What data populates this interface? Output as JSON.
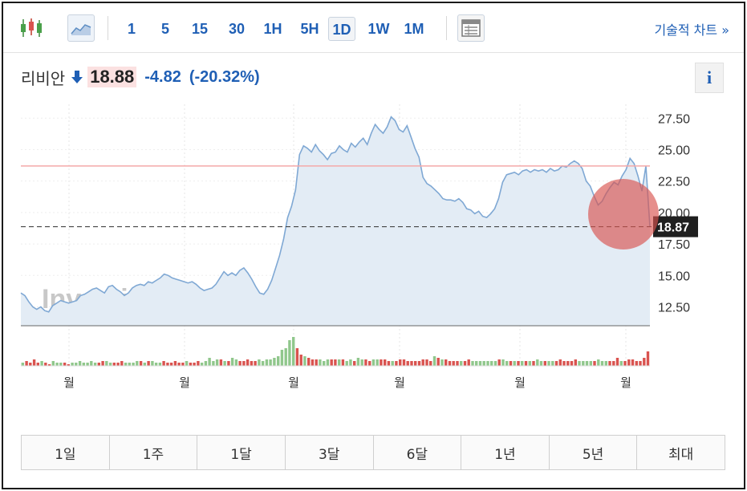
{
  "toolbar": {
    "periods": [
      "1",
      "5",
      "15",
      "30",
      "1H",
      "5H",
      "1D",
      "1W",
      "1M"
    ],
    "active_period": "1D",
    "tech_chart_label": "기술적 차트 »"
  },
  "quote": {
    "name": "리비안",
    "price": "18.88",
    "change": "-4.82",
    "change_pct": "(-20.32%)",
    "direction": "down",
    "down_color": "#1f5fb5",
    "info_label": "i"
  },
  "chart_data": {
    "type": "area",
    "x_tick_labels": [
      "월",
      "월",
      "월",
      "월",
      "월",
      "월"
    ],
    "y_tick_labels": [
      "27.50",
      "25.00",
      "22.50",
      "20.00",
      "17.50",
      "15.00",
      "12.50"
    ],
    "ylim": [
      11.0,
      28.6
    ],
    "ref_line_value": 23.7,
    "current_value": 18.87,
    "current_label": "18.87",
    "line_color": "#7fa8d4",
    "fill_color": "#e3ecf5",
    "watermark": "Investing.com",
    "series": [
      {
        "values": [
          13.6,
          13.4,
          12.9,
          12.5,
          12.3,
          12.5,
          12.2,
          12.1,
          12.6,
          12.8,
          13.0,
          12.9,
          12.8,
          12.9,
          13.0,
          13.4,
          13.5,
          13.7,
          13.9,
          14.0,
          13.8,
          13.6,
          14.1,
          14.2,
          13.9,
          13.7,
          13.4,
          13.6,
          14.0,
          14.2,
          14.3,
          14.2,
          14.5,
          14.4,
          14.6,
          14.8,
          15.1,
          15.0,
          14.8,
          14.7,
          14.6,
          14.5,
          14.4,
          14.5,
          14.3,
          14.0,
          13.8,
          13.9,
          14.0,
          14.3,
          14.8,
          15.3,
          15.0,
          15.2,
          15.0,
          15.4,
          15.6,
          15.2,
          14.7,
          14.1,
          13.6,
          13.5,
          13.9,
          14.6,
          15.6,
          16.6,
          17.9,
          19.6,
          20.5,
          21.8,
          24.6,
          25.3,
          25.1,
          24.8,
          25.4,
          24.9,
          24.6,
          24.2,
          24.7,
          24.8,
          25.3,
          25.0,
          24.8,
          25.5,
          25.2,
          25.6,
          25.9,
          25.4,
          26.3,
          27.0,
          26.6,
          26.3,
          26.8,
          27.6,
          27.3,
          26.6,
          26.4,
          26.9,
          26.0,
          25.1,
          24.4,
          22.8,
          22.3,
          22.1,
          21.8,
          21.5,
          21.1,
          21.0,
          21.0,
          20.9,
          21.1,
          20.8,
          20.3,
          20.2,
          19.9,
          20.1,
          19.7,
          19.6,
          19.9,
          20.3,
          21.1,
          22.4,
          23.0,
          23.1,
          23.2,
          23.0,
          23.3,
          23.4,
          23.2,
          23.4,
          23.3,
          23.4,
          23.2,
          23.5,
          23.3,
          23.4,
          23.7,
          23.6,
          23.9,
          24.1,
          23.9,
          23.5,
          22.5,
          22.1,
          21.3,
          20.6,
          20.9,
          21.5,
          22.0,
          22.4,
          22.2,
          22.9,
          23.4,
          24.3,
          23.9,
          22.9,
          21.7,
          23.7,
          18.88
        ]
      }
    ],
    "volume": {
      "values": [
        2,
        3,
        2,
        4,
        2,
        3,
        2,
        1,
        3,
        2,
        2,
        2,
        1,
        2,
        2,
        3,
        2,
        2,
        3,
        2,
        2,
        3,
        3,
        2,
        2,
        2,
        3,
        2,
        2,
        2,
        3,
        3,
        2,
        3,
        3,
        2,
        2,
        3,
        2,
        2,
        3,
        2,
        2,
        3,
        2,
        2,
        3,
        2,
        3,
        5,
        3,
        4,
        4,
        3,
        3,
        5,
        4,
        3,
        3,
        4,
        3,
        3,
        4,
        3,
        4,
        4,
        5,
        6,
        10,
        11,
        16,
        18,
        11,
        7,
        6,
        5,
        4,
        4,
        4,
        3,
        4,
        4,
        4,
        4,
        4,
        3,
        4,
        3,
        5,
        4,
        4,
        3,
        4,
        4,
        4,
        4,
        3,
        3,
        3,
        4,
        4,
        3,
        3,
        3,
        3,
        4,
        4,
        3,
        6,
        5,
        4,
        4,
        3,
        3,
        3,
        3,
        3,
        4,
        3,
        3,
        3,
        3,
        3,
        3,
        3,
        4,
        4,
        3,
        3,
        3,
        3,
        3,
        3,
        3,
        3,
        4,
        3,
        3,
        3,
        3,
        3,
        4,
        3,
        3,
        3,
        4,
        3,
        3,
        3,
        3,
        3,
        4,
        3,
        3,
        3,
        3,
        5,
        3,
        3,
        4,
        4,
        3,
        3,
        5,
        9
      ],
      "up_color": "#90c78c",
      "down_color": "#d9534f"
    },
    "highlight_color": "#d9534f"
  },
  "ranges": [
    "1일",
    "1주",
    "1달",
    "3달",
    "6달",
    "1년",
    "5년",
    "최대"
  ]
}
